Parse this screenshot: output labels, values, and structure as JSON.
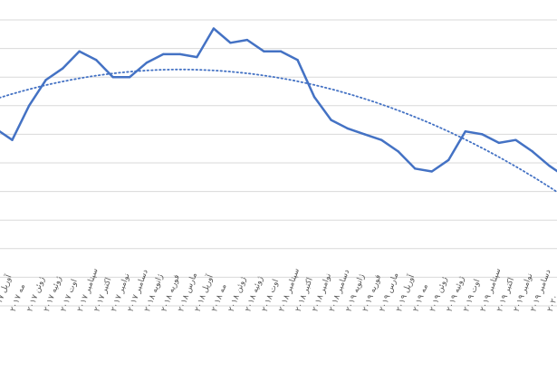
{
  "chart_data": {
    "type": "line",
    "title": "",
    "xlabel": "",
    "ylabel": "",
    "ylim": [
      0,
      10
    ],
    "grid": true,
    "legend": "none",
    "colors": {
      "series": "#4472c4",
      "trend": "#4472c4",
      "grid": "#d9d9d9",
      "tick": "#595959"
    },
    "categories": [
      "آوریل ۲۰۱۷",
      "مه ۲۰۱۷",
      "ژوئن ۲۰۱۷",
      "ژوئیه ۲۰۱۷",
      "اوت ۲۰۱۷",
      "سپتامبر ۲۰۱۷",
      "اکتبر ۲۰۱۷",
      "نوامبر ۲۰۱۷",
      "دسامبر ۲۰۱۷",
      "ژانویه ۲۰۱۸",
      "فوریه ۲۰۱۸",
      "مارس ۲۰۱۸",
      "آوریل ۲۰۱۸",
      "مه ۲۰۱۸",
      "ژوئن ۲۰۱۸",
      "ژوئیه ۲۰۱۸",
      "اوت ۲۰۱۸",
      "سپتامبر ۲۰۱۸",
      "اکتبر ۲۰۱۸",
      "نوامبر ۲۰۱۸",
      "دسامبر ۲۰۱۸",
      "ژانویه ۲۰۱۹",
      "فوریه ۲۰۱۹",
      "مارس ۲۰۱۹",
      "آوریل ۲۰۱۹",
      "مه ۲۰۱۹",
      "ژوئن ۲۰۱۹",
      "ژوئیه ۲۰۱۹",
      "اوت ۲۰۱۹",
      "سپتامبر ۲۰۱۹",
      "اکتبر ۲۰۱۹",
      "نوامبر ۲۰۱۹",
      "دسامبر ۲۰۱۹",
      "ژانویه ۲۰۲۰",
      "فوریه ۲۰۲۰"
    ],
    "series": [
      {
        "values": [
          6.2,
          5.8,
          7.0,
          7.9,
          8.3,
          8.9,
          8.6,
          8.0,
          8.0,
          8.5,
          8.8,
          8.8,
          8.7,
          9.7,
          9.2,
          9.3,
          8.9,
          8.9,
          8.6,
          7.3,
          6.5,
          6.2,
          6.0,
          5.8,
          5.4,
          4.8,
          4.7,
          5.1,
          6.1,
          6.0,
          5.7,
          5.8,
          5.4,
          4.9,
          4.5
        ]
      }
    ],
    "trendline": {
      "type": "polynomial",
      "order": 2,
      "style": "dotted"
    }
  }
}
